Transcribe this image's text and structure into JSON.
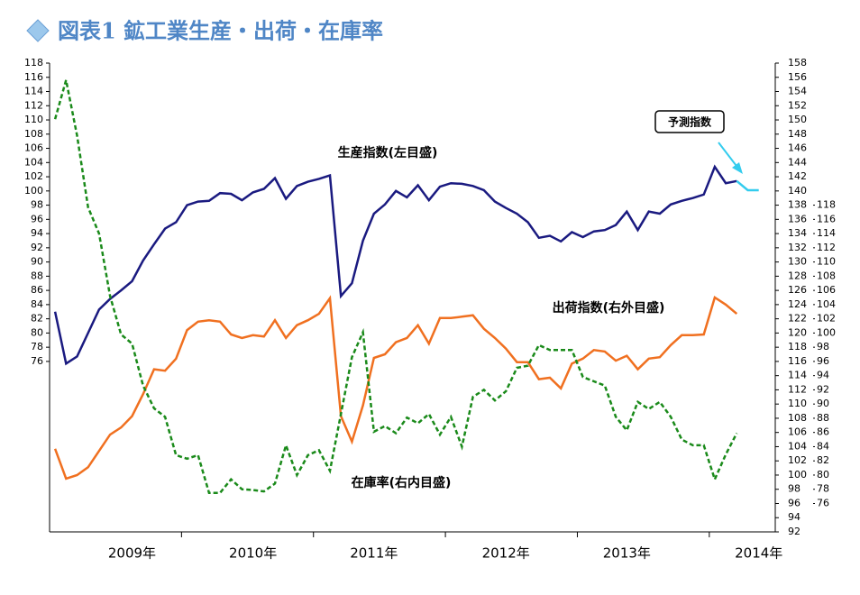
{
  "chart_data": {
    "type": "line",
    "title": "図表1 鉱工業生産・出荷・在庫率",
    "categories": [
      null,
      null,
      null,
      null,
      null,
      null,
      null,
      "2009年",
      null,
      null,
      null,
      null,
      null,
      null,
      null,
      null,
      null,
      null,
      "2010年",
      null,
      null,
      null,
      null,
      null,
      null,
      null,
      null,
      null,
      null,
      "2011年",
      null,
      null,
      null,
      null,
      null,
      null,
      null,
      null,
      null,
      null,
      null,
      "2012年",
      null,
      null,
      null,
      null,
      null,
      null,
      null,
      null,
      null,
      null,
      "2013年",
      null,
      null,
      null,
      null,
      null,
      null,
      null,
      null,
      null,
      null,
      null,
      "2014年",
      null
    ],
    "series": [
      {
        "name": "生産指数(左目盛)",
        "color": "#1a1a80",
        "axis": "y",
        "line_style": "solid",
        "values": [
          83,
          75.7,
          76.7,
          80,
          83.3,
          84.8,
          86,
          87.3,
          90.2,
          92.5,
          94.7,
          95.6,
          98,
          98.5,
          98.6,
          99.7,
          99.6,
          98.7,
          99.8,
          100.3,
          101.8,
          98.9,
          100.7,
          101.3,
          101.7,
          102.2,
          85.2,
          87,
          93,
          96.8,
          98.1,
          100,
          99.1,
          100.8,
          98.7,
          100.6,
          101.1,
          101,
          100.7,
          100.1,
          98.5,
          97.6,
          96.8,
          95.6,
          93.4,
          93.7,
          92.9,
          94.2,
          93.5,
          94.3,
          94.5,
          95.2,
          97.1,
          94.5,
          97.1,
          96.8,
          98.1,
          98.6,
          99,
          99.5,
          103.4,
          101.1,
          101.4,
          null,
          null,
          null
        ]
      },
      {
        "name": "予測指数",
        "color": "#33ccee",
        "axis": "y",
        "line_style": "solid",
        "values": [
          null,
          null,
          null,
          null,
          null,
          null,
          null,
          null,
          null,
          null,
          null,
          null,
          null,
          null,
          null,
          null,
          null,
          null,
          null,
          null,
          null,
          null,
          null,
          null,
          null,
          null,
          null,
          null,
          null,
          null,
          null,
          null,
          null,
          null,
          null,
          null,
          null,
          null,
          null,
          null,
          null,
          null,
          null,
          null,
          null,
          null,
          null,
          null,
          null,
          null,
          null,
          null,
          null,
          null,
          null,
          null,
          null,
          null,
          null,
          null,
          null,
          null,
          101.4,
          100.1,
          100.1,
          null
        ]
      },
      {
        "name": "出荷指数(右外目盛)",
        "color": "#f07020",
        "axis": "y2",
        "line_style": "solid",
        "values": [
          103.7,
          99.5,
          100,
          101.1,
          103.4,
          105.7,
          106.7,
          108.3,
          111.4,
          114.9,
          114.7,
          116.4,
          120.4,
          121.6,
          121.8,
          121.6,
          119.8,
          119.3,
          119.7,
          119.5,
          121.8,
          119.3,
          121.1,
          121.8,
          122.7,
          124.9,
          108.3,
          104.7,
          109.8,
          116.5,
          117,
          118.7,
          119.3,
          121.1,
          118.5,
          122.1,
          122.1,
          122.3,
          122.5,
          120.6,
          119.3,
          117.8,
          115.9,
          115.9,
          113.5,
          113.7,
          112.2,
          115.7,
          116.4,
          117.6,
          117.4,
          116.1,
          116.8,
          114.9,
          116.4,
          116.6,
          118.3,
          119.7,
          119.7,
          119.8,
          125,
          124,
          122.7,
          null,
          null,
          null
        ]
      },
      {
        "name": "在庫率(右内目盛)",
        "color": "#1a8a1a",
        "axis": "y3",
        "line_style": "dashed",
        "values": [
          130.1,
          135.6,
          127.8,
          117.7,
          114,
          105.2,
          99.8,
          98.5,
          92.6,
          89.4,
          88.2,
          82.8,
          82.3,
          82.8,
          77.5,
          77.5,
          79.4,
          78,
          77.9,
          77.7,
          78.8,
          84.2,
          80,
          82.8,
          83.5,
          80.6,
          88.6,
          96.6,
          100.1,
          86.1,
          86.9,
          85.9,
          88.1,
          87.3,
          88.6,
          85.7,
          88.2,
          84,
          91,
          92,
          90.5,
          91.8,
          95.1,
          95.4,
          98.3,
          97.6,
          97.6,
          97.6,
          93.8,
          93.2,
          92.6,
          88.2,
          86.3,
          90.3,
          89.3,
          90.3,
          88.2,
          85,
          84.2,
          84.2,
          79.4,
          82.9,
          85.9,
          null,
          null,
          null
        ]
      }
    ],
    "ylim": [
      52,
      118
    ],
    "yticks": [
      76,
      78,
      80,
      82,
      84,
      86,
      88,
      90,
      92,
      94,
      96,
      98,
      100,
      102,
      104,
      106,
      108,
      110,
      112,
      114,
      116,
      118
    ],
    "y2lim": [
      92,
      158
    ],
    "y2ticks": [
      92,
      94,
      96,
      98,
      100,
      102,
      104,
      106,
      108,
      110,
      112,
      114,
      116,
      118,
      120,
      122,
      124,
      126,
      128,
      130,
      132,
      134,
      136,
      138,
      140,
      142,
      144,
      146,
      148,
      150,
      152,
      154,
      156,
      158
    ],
    "y3lim": [
      72,
      138
    ],
    "y3ticks": [
      76,
      78,
      80,
      82,
      84,
      86,
      88,
      90,
      92,
      94,
      96,
      98,
      100,
      102,
      104,
      106,
      108,
      110,
      112,
      114,
      116,
      118
    ],
    "grid": false
  }
}
